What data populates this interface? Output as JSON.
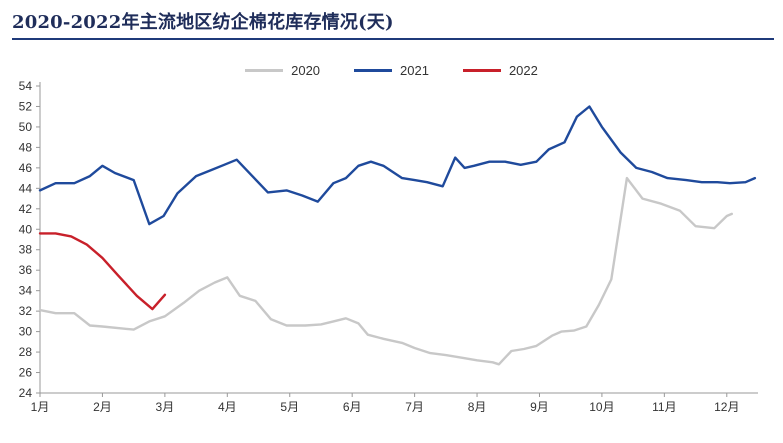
{
  "title": "2020-2022年主流地区纺企棉花库存情况(天)",
  "colors": {
    "2020": "#c8c8c8",
    "2021": "#1f4a9c",
    "2022": "#c8202a",
    "title": "#1f2d5a"
  },
  "chart_data": {
    "type": "line",
    "title": "2020-2022年主流地区纺企棉花库存情况(天)",
    "xlabel": "",
    "ylabel": "",
    "ylim": [
      24,
      54
    ],
    "yticks": [
      24,
      26,
      28,
      30,
      32,
      34,
      36,
      38,
      40,
      42,
      44,
      46,
      48,
      50,
      52,
      54
    ],
    "months": [
      "1月",
      "2月",
      "3月",
      "4月",
      "5月",
      "6月",
      "7月",
      "8月",
      "9月",
      "10月",
      "11月",
      "12月"
    ],
    "grid": false,
    "legend_position": "top-center",
    "series": [
      {
        "name": "2020",
        "color": "#c8c8c8",
        "points": [
          [
            1.0,
            32.1
          ],
          [
            1.25,
            31.8
          ],
          [
            1.55,
            31.8
          ],
          [
            1.8,
            30.6
          ],
          [
            2.0,
            30.5
          ],
          [
            2.5,
            30.2
          ],
          [
            2.75,
            31.0
          ],
          [
            3.0,
            31.5
          ],
          [
            3.3,
            32.8
          ],
          [
            3.55,
            34.0
          ],
          [
            3.8,
            34.8
          ],
          [
            4.0,
            35.3
          ],
          [
            4.2,
            33.5
          ],
          [
            4.45,
            33.0
          ],
          [
            4.7,
            31.2
          ],
          [
            4.95,
            30.6
          ],
          [
            5.25,
            30.6
          ],
          [
            5.5,
            30.7
          ],
          [
            5.7,
            31.0
          ],
          [
            5.9,
            31.3
          ],
          [
            6.1,
            30.8
          ],
          [
            6.25,
            29.7
          ],
          [
            6.5,
            29.3
          ],
          [
            6.8,
            28.9
          ],
          [
            7.0,
            28.4
          ],
          [
            7.25,
            27.9
          ],
          [
            7.5,
            27.7
          ],
          [
            7.8,
            27.4
          ],
          [
            8.0,
            27.2
          ],
          [
            8.25,
            27.0
          ],
          [
            8.35,
            26.8
          ],
          [
            8.55,
            28.1
          ],
          [
            8.75,
            28.3
          ],
          [
            8.95,
            28.6
          ],
          [
            9.2,
            29.6
          ],
          [
            9.35,
            30.0
          ],
          [
            9.55,
            30.1
          ],
          [
            9.75,
            30.5
          ],
          [
            9.95,
            32.6
          ],
          [
            10.15,
            35.1
          ],
          [
            10.4,
            45.0
          ],
          [
            10.65,
            43.0
          ],
          [
            10.95,
            42.5
          ],
          [
            11.25,
            41.8
          ],
          [
            11.5,
            40.3
          ],
          [
            11.8,
            40.1
          ],
          [
            12.0,
            41.3
          ],
          [
            12.08,
            41.5
          ]
        ]
      },
      {
        "name": "2021",
        "color": "#1f4a9c",
        "points": [
          [
            1.0,
            43.8
          ],
          [
            1.25,
            44.5
          ],
          [
            1.55,
            44.5
          ],
          [
            1.8,
            45.2
          ],
          [
            2.0,
            46.2
          ],
          [
            2.2,
            45.5
          ],
          [
            2.5,
            44.8
          ],
          [
            2.75,
            40.5
          ],
          [
            2.98,
            41.3
          ],
          [
            3.2,
            43.5
          ],
          [
            3.5,
            45.2
          ],
          [
            3.75,
            45.8
          ],
          [
            3.95,
            46.3
          ],
          [
            4.15,
            46.8
          ],
          [
            4.4,
            45.2
          ],
          [
            4.65,
            43.6
          ],
          [
            4.95,
            43.8
          ],
          [
            5.2,
            43.3
          ],
          [
            5.45,
            42.7
          ],
          [
            5.7,
            44.5
          ],
          [
            5.9,
            45.0
          ],
          [
            6.1,
            46.2
          ],
          [
            6.3,
            46.6
          ],
          [
            6.5,
            46.2
          ],
          [
            6.8,
            45.0
          ],
          [
            7.0,
            44.8
          ],
          [
            7.2,
            44.6
          ],
          [
            7.45,
            44.2
          ],
          [
            7.65,
            47.0
          ],
          [
            7.8,
            46.0
          ],
          [
            7.95,
            46.2
          ],
          [
            8.2,
            46.6
          ],
          [
            8.45,
            46.6
          ],
          [
            8.7,
            46.3
          ],
          [
            8.95,
            46.6
          ],
          [
            9.15,
            47.8
          ],
          [
            9.4,
            48.5
          ],
          [
            9.6,
            51.0
          ],
          [
            9.8,
            52.0
          ],
          [
            10.0,
            50.0
          ],
          [
            10.3,
            47.5
          ],
          [
            10.55,
            46.0
          ],
          [
            10.8,
            45.6
          ],
          [
            11.05,
            45.0
          ],
          [
            11.35,
            44.8
          ],
          [
            11.6,
            44.6
          ],
          [
            11.85,
            44.6
          ],
          [
            12.05,
            44.5
          ],
          [
            12.3,
            44.6
          ],
          [
            12.45,
            45.0
          ]
        ]
      },
      {
        "name": "2022",
        "color": "#c8202a",
        "points": [
          [
            1.0,
            39.6
          ],
          [
            1.25,
            39.6
          ],
          [
            1.5,
            39.3
          ],
          [
            1.75,
            38.5
          ],
          [
            2.0,
            37.2
          ],
          [
            2.25,
            35.5
          ],
          [
            2.55,
            33.5
          ],
          [
            2.8,
            32.2
          ],
          [
            3.0,
            33.6
          ]
        ]
      }
    ]
  }
}
